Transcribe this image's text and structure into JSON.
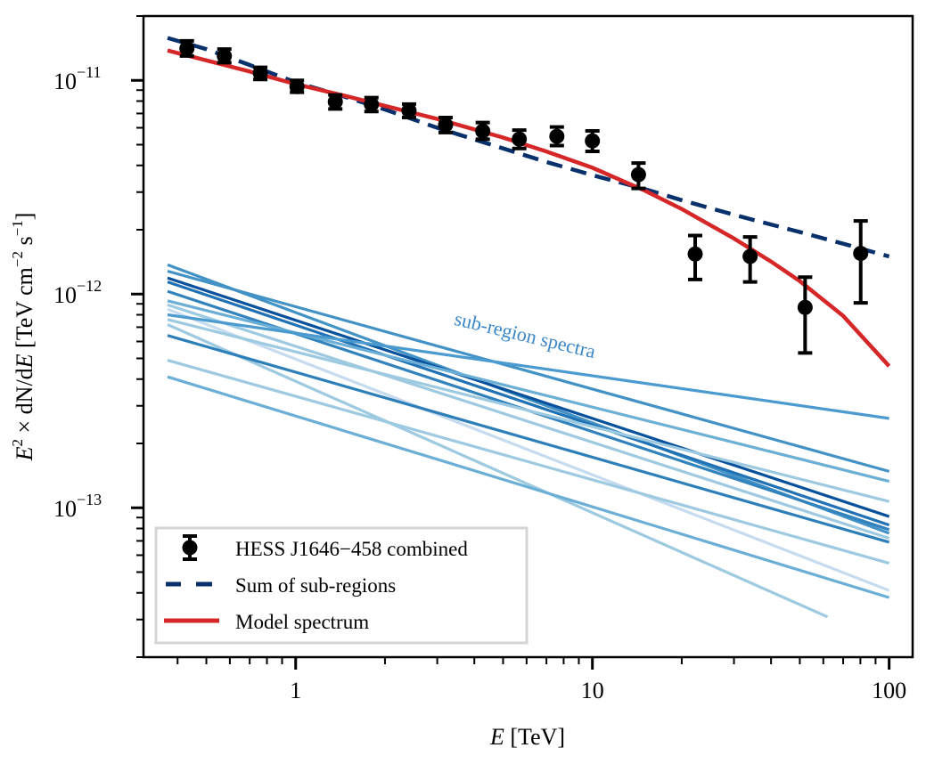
{
  "chart_data": {
    "type": "line",
    "title": "",
    "xlabel": "E [TeV]",
    "ylabel": "E^2 × dN/dE [TeV cm^-2 s^-1]",
    "xscale": "log",
    "yscale": "log",
    "xlim": [
      0.307,
      120
    ],
    "ylim": [
      2e-14,
      2e-11
    ],
    "grid": false,
    "legend_position": "lower-left",
    "x_ticks": [
      {
        "value": 1,
        "label": "1"
      },
      {
        "value": 10,
        "label": "10"
      },
      {
        "value": 100,
        "label": "100"
      }
    ],
    "y_ticks": [
      {
        "value": 1e-11,
        "base": "10",
        "exp": "−11"
      },
      {
        "value": 1e-12,
        "base": "10",
        "exp": "−12"
      },
      {
        "value": 1e-13,
        "base": "10",
        "exp": "−13"
      }
    ],
    "annotation": {
      "text": "sub-region spectra",
      "x": 3.4,
      "y": 7.2e-13,
      "color": "#3a86c8"
    },
    "legend": [
      {
        "label": "HESS J1646−458 combined",
        "kind": "errorbar",
        "color": "#000000"
      },
      {
        "label": "Sum of sub-regions",
        "kind": "dashed",
        "color": "#08306b"
      },
      {
        "label": "Model spectrum",
        "kind": "solid",
        "color": "#d62728"
      }
    ],
    "series": [
      {
        "name": "HESS J1646−458 combined",
        "type": "errorbar",
        "color": "#000000",
        "points": [
          {
            "x": 0.43,
            "y": 1.41e-11,
            "ylo": 1.3e-11,
            "yhi": 1.53e-11
          },
          {
            "x": 0.575,
            "y": 1.3e-11,
            "ylo": 1.21e-11,
            "yhi": 1.4e-11
          },
          {
            "x": 0.76,
            "y": 1.08e-11,
            "ylo": 1.01e-11,
            "yhi": 1.15e-11
          },
          {
            "x": 1.01,
            "y": 9.35e-12,
            "ylo": 8.8e-12,
            "yhi": 1e-11
          },
          {
            "x": 1.36,
            "y": 7.94e-12,
            "ylo": 7.35e-12,
            "yhi": 8.55e-12
          },
          {
            "x": 1.8,
            "y": 7.72e-12,
            "ylo": 7.15e-12,
            "yhi": 8.3e-12
          },
          {
            "x": 2.41,
            "y": 7.22e-12,
            "ylo": 6.7e-12,
            "yhi": 7.75e-12
          },
          {
            "x": 3.2,
            "y": 6.19e-12,
            "ylo": 5.7e-12,
            "yhi": 6.7e-12
          },
          {
            "x": 4.27,
            "y": 5.79e-12,
            "ylo": 5.3e-12,
            "yhi": 6.35e-12
          },
          {
            "x": 5.67,
            "y": 5.31e-12,
            "ylo": 4.8e-12,
            "yhi": 5.85e-12
          },
          {
            "x": 7.59,
            "y": 5.47e-12,
            "ylo": 4.95e-12,
            "yhi": 6.05e-12
          },
          {
            "x": 10.0,
            "y": 5.21e-12,
            "ylo": 4.65e-12,
            "yhi": 5.8e-12
          },
          {
            "x": 14.3,
            "y": 3.62e-12,
            "ylo": 3.12e-12,
            "yhi": 4.1e-12
          },
          {
            "x": 22.2,
            "y": 1.54e-12,
            "ylo": 1.17e-12,
            "yhi": 1.88e-12
          },
          {
            "x": 34.0,
            "y": 1.5e-12,
            "ylo": 1.14e-12,
            "yhi": 1.85e-12
          },
          {
            "x": 52.1,
            "y": 8.66e-13,
            "ylo": 5.3e-13,
            "yhi": 1.2e-12
          },
          {
            "x": 80.2,
            "y": 1.55e-12,
            "ylo": 9.1e-13,
            "yhi": 2.2e-12
          }
        ]
      },
      {
        "name": "Sum of sub-regions",
        "type": "dashed",
        "color": "#08306b",
        "x": [
          0.37,
          0.5,
          0.7,
          1,
          1.5,
          2,
          3,
          5,
          7,
          10,
          15,
          20,
          30,
          50,
          70,
          100
        ],
        "y": [
          1.58e-11,
          1.4e-11,
          1.18e-11,
          9.8e-12,
          8.3e-12,
          7.3e-12,
          6e-12,
          4.8e-12,
          4.15e-12,
          3.6e-12,
          3.1e-12,
          2.75e-12,
          2.35e-12,
          1.95e-12,
          1.72e-12,
          1.5e-12
        ]
      },
      {
        "name": "Model spectrum",
        "type": "solid",
        "color": "#d62728",
        "x": [
          0.37,
          0.5,
          0.7,
          1,
          1.5,
          2,
          3,
          5,
          7,
          10,
          15,
          20,
          30,
          40,
          50,
          70,
          100
        ],
        "y": [
          1.38e-11,
          1.24e-11,
          1.1e-11,
          9.6e-12,
          8.4e-12,
          7.6e-12,
          6.6e-12,
          5.4e-12,
          4.65e-12,
          3.9e-12,
          3.05e-12,
          2.5e-12,
          1.82e-12,
          1.42e-12,
          1.15e-12,
          7.9e-13,
          4.6e-13
        ]
      }
    ],
    "subregion_spectra": {
      "name": "sub-region spectra",
      "x_range": [
        0.37,
        100
      ],
      "lines": [
        {
          "y0": 1.37e-12,
          "y1": 7.6e-14,
          "color": "#4292c6"
        },
        {
          "y0": 1.28e-12,
          "y1": 1.48e-13,
          "color": "#4292c6"
        },
        {
          "y0": 1.19e-12,
          "y1": 9.1e-14,
          "color": "#08519c"
        },
        {
          "y0": 1.14e-12,
          "y1": 8.3e-14,
          "color": "#2171b5"
        },
        {
          "y0": 1.03e-12,
          "y1": 7.9e-14,
          "color": "#3182bd"
        },
        {
          "y0": 9.3e-13,
          "y1": 1.33e-13,
          "color": "#6baed6"
        },
        {
          "y0": 8.9e-13,
          "y1": 7.2e-14,
          "color": "#9ecae1"
        },
        {
          "y0": 8.5e-13,
          "y1": 4.1e-14,
          "color": "#c6dbef"
        },
        {
          "y0": 8e-13,
          "y1": 2.62e-13,
          "color": "#4b9bd0"
        },
        {
          "y0": 7.6e-13,
          "y1": 1.07e-13,
          "color": "#9ecae1"
        },
        {
          "y0": 7.2e-13,
          "y1": 2.3e-14,
          "color": "#9ecae1",
          "x_end": 62
        },
        {
          "y0": 6.4e-13,
          "y1": 6.9e-14,
          "color": "#2c7fb8"
        },
        {
          "y0": 4.9e-13,
          "y1": 5.5e-14,
          "color": "#9ecae1"
        },
        {
          "y0": 4.1e-13,
          "y1": 3.8e-14,
          "color": "#6baed6"
        }
      ]
    }
  }
}
